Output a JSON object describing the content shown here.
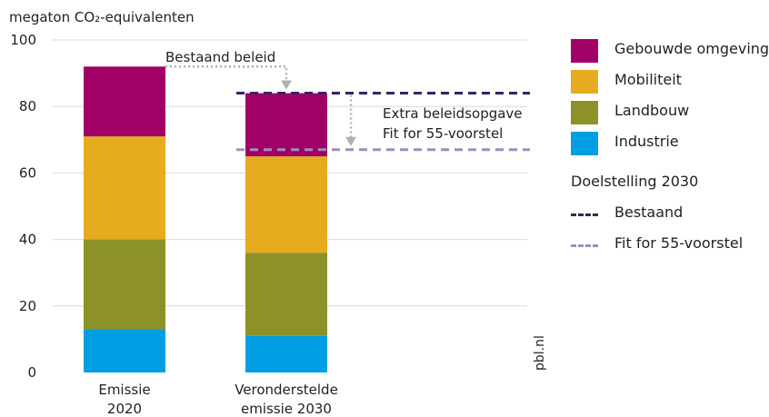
{
  "chart_data": {
    "type": "bar",
    "stacked": true,
    "ylabel": "megaton CO₂-equivalenten",
    "ylim": [
      0,
      100
    ],
    "yticks": [
      "0",
      "20",
      "40",
      "60",
      "80",
      "100"
    ],
    "categories": [
      {
        "line1": "Emissie",
        "line2": "2020"
      },
      {
        "line1": "Veronderstelde",
        "line2": "emissie 2030"
      }
    ],
    "series": [
      {
        "name": "Industrie",
        "color": "#009fe3",
        "values": [
          13,
          11
        ]
      },
      {
        "name": "Landbouw",
        "color": "#8c9227",
        "values": [
          27,
          25
        ]
      },
      {
        "name": "Mobiliteit",
        "color": "#e6ab1f",
        "values": [
          31,
          29
        ]
      },
      {
        "name": "Gebouwde omgeving",
        "color": "#a10066",
        "values": [
          21,
          19
        ]
      }
    ],
    "targets_title": "Doelstelling 2030",
    "targets": [
      {
        "name": "Bestaand",
        "value": 84,
        "color": "#3b2362"
      },
      {
        "name": "Fit for 55-voorstel",
        "value": 67,
        "color": "#9b8fc0"
      }
    ],
    "annotations": {
      "bestaand_beleid": "Bestaand beleid",
      "extra_line1": "Extra beleidsopgave",
      "extra_line2": "Fit for 55-voorstel"
    },
    "source": "pbl.nl",
    "grid": true,
    "legend_position": "right"
  }
}
